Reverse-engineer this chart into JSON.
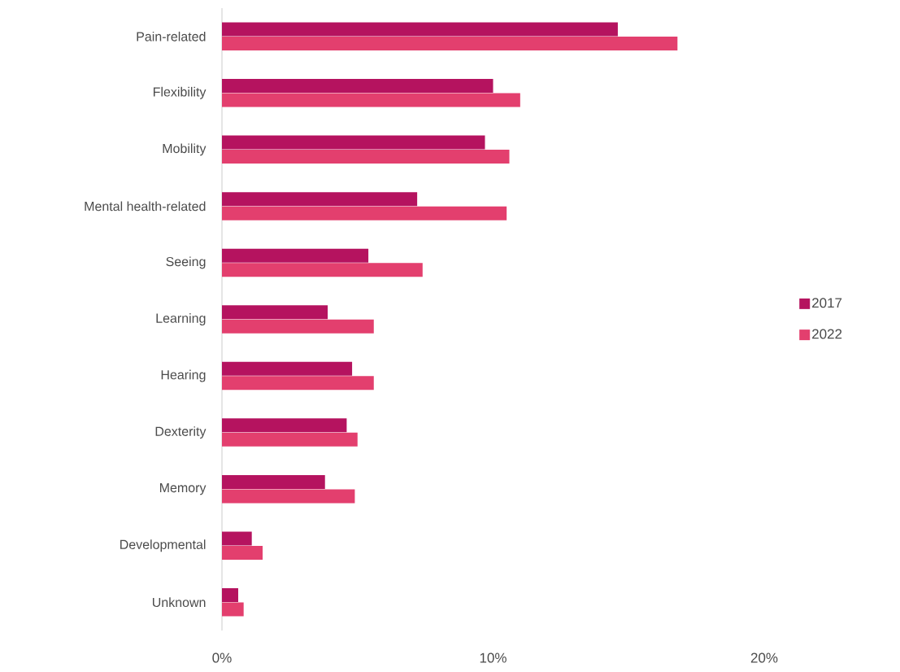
{
  "chart_data": {
    "type": "bar",
    "orientation": "horizontal",
    "categories": [
      "Pain-related",
      "Flexibility",
      "Mobility",
      "Mental health-related",
      "Seeing",
      "Learning",
      "Hearing",
      "Dexterity",
      "Memory",
      "Developmental",
      "Unknown"
    ],
    "series": [
      {
        "name": "2017",
        "color": "#b5135f",
        "values": [
          14.6,
          10.0,
          9.7,
          7.2,
          5.4,
          3.9,
          4.8,
          4.6,
          3.8,
          1.1,
          0.6
        ]
      },
      {
        "name": "2022",
        "color": "#e33f6e",
        "values": [
          16.8,
          11.0,
          10.6,
          10.5,
          7.4,
          5.6,
          5.6,
          5.0,
          4.9,
          1.5,
          0.8
        ]
      }
    ],
    "xlim": [
      0,
      20
    ],
    "xticks": [
      {
        "value": 0,
        "label": "0%"
      },
      {
        "value": 10,
        "label": "10%"
      },
      {
        "value": 20,
        "label": "20%"
      }
    ],
    "grid": false,
    "legend": "right"
  }
}
